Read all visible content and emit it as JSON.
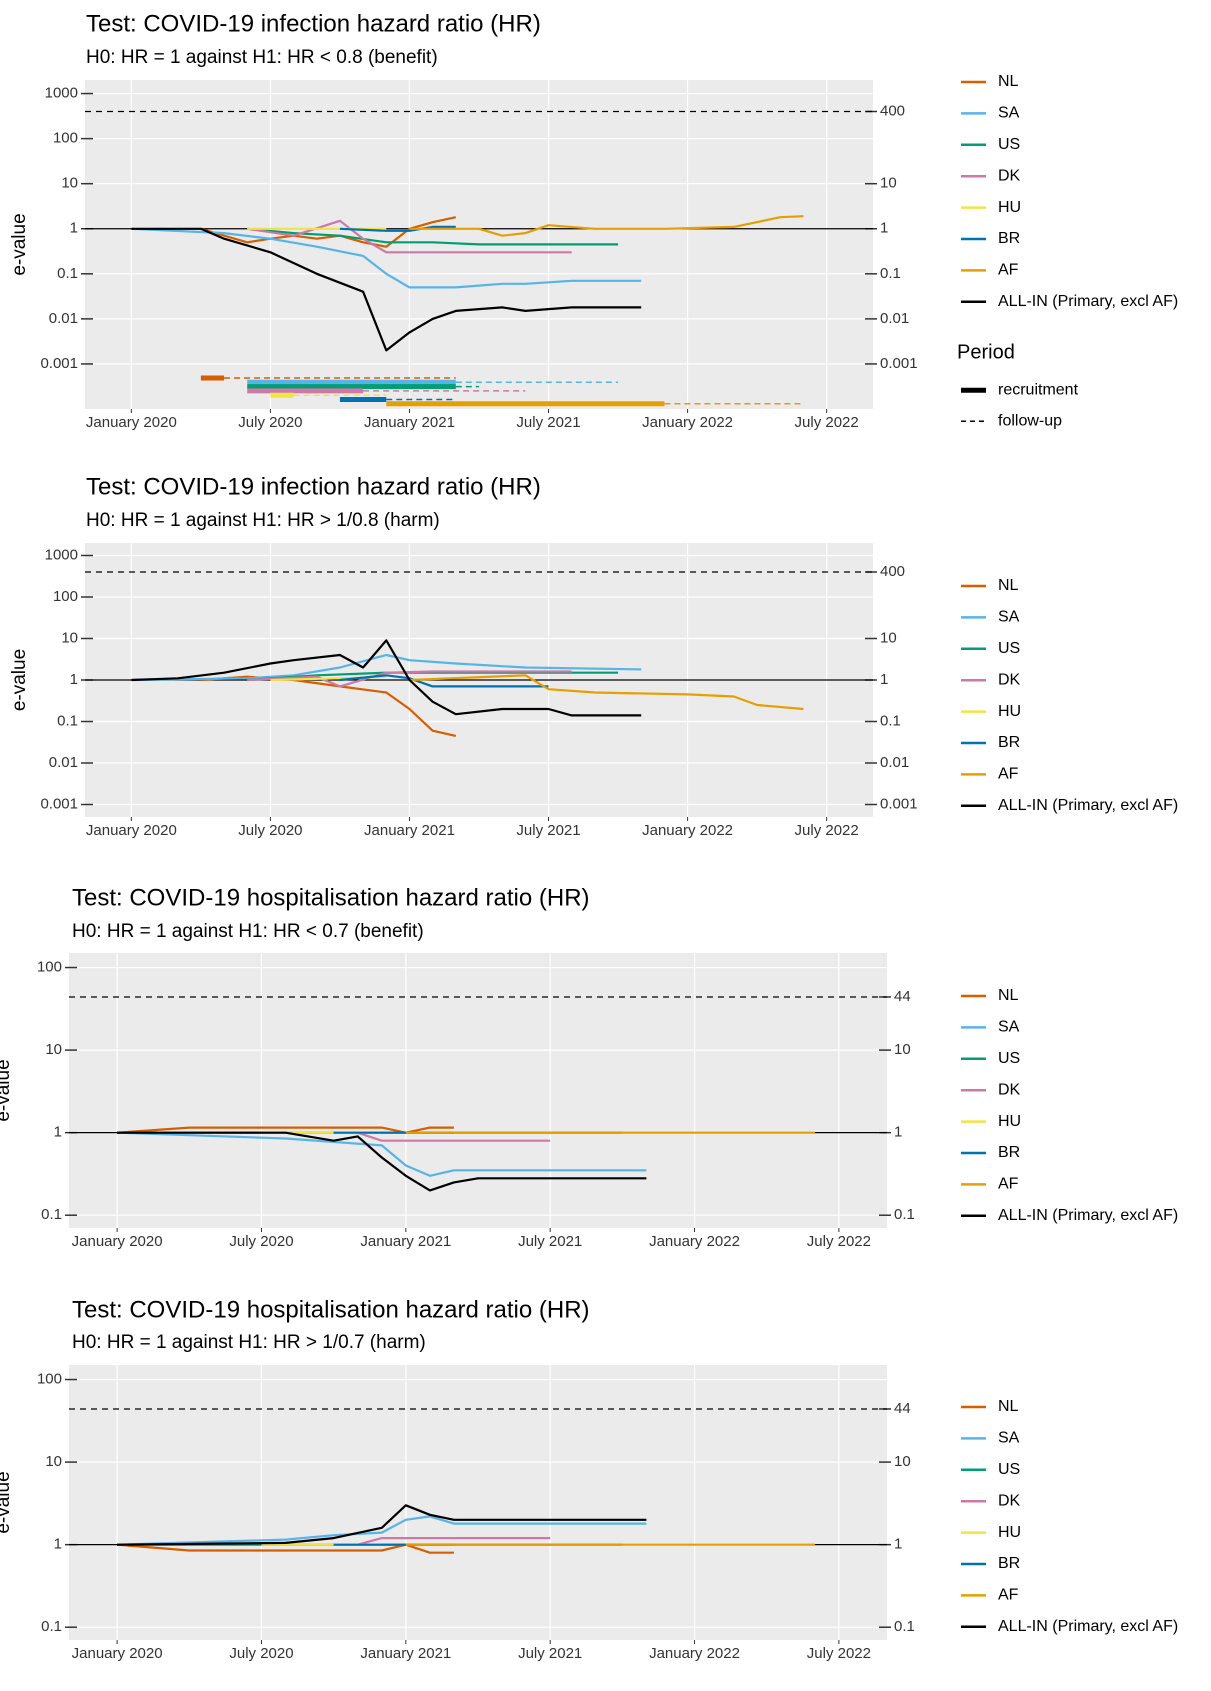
{
  "chart_data": [
    {
      "type": "line",
      "title": "Test: COVID-19 infection hazard ratio (HR)",
      "subtitle": "H0: HR = 1 against H1: HR < 0.8 (benefit)",
      "y_label": "e-value",
      "log_y": true,
      "grid": true,
      "hline": 1,
      "threshold": 400,
      "xlim": [
        "2019-11",
        "2022-09"
      ],
      "xticks": [
        {
          "value": "2020-01",
          "label": "January 2020"
        },
        {
          "value": "2020-07",
          "label": "July 2020"
        },
        {
          "value": "2021-01",
          "label": "January 2021"
        },
        {
          "value": "2021-07",
          "label": "July 2021"
        },
        {
          "value": "2022-01",
          "label": "January 2022"
        },
        {
          "value": "2022-07",
          "label": "July 2022"
        }
      ],
      "ylim": [
        0.0001,
        2000
      ],
      "yticks": [
        0.001,
        0.01,
        0.1,
        1,
        10,
        100,
        1000
      ],
      "y2lim": [
        0.0001,
        2000
      ],
      "y2ticks": [
        0.001,
        0.01,
        0.1,
        1,
        10,
        400
      ],
      "series": [
        {
          "name": "NL",
          "color": "#d55e00",
          "x": [
            "2020-04",
            "2020-05",
            "2020-06",
            "2020-07",
            "2020-08",
            "2020-09",
            "2020-10",
            "2020-11",
            "2020-12",
            "2021-01",
            "2021-02",
            "2021-03"
          ],
          "values": [
            1,
            0.7,
            0.5,
            0.6,
            0.7,
            0.6,
            0.7,
            0.5,
            0.4,
            1,
            1.4,
            1.8
          ],
          "recruitment": [
            "2020-04",
            "2020-05"
          ],
          "follow_up": [
            "2020-05",
            "2021-03"
          ]
        },
        {
          "name": "SA",
          "color": "#56b4e9",
          "x": [
            "2020-01",
            "2020-05",
            "2020-07",
            "2020-09",
            "2020-11",
            "2020-12",
            "2021-01",
            "2021-03",
            "2021-05",
            "2021-06",
            "2021-08",
            "2021-11"
          ],
          "values": [
            1,
            0.8,
            0.6,
            0.4,
            0.25,
            0.1,
            0.05,
            0.05,
            0.06,
            0.06,
            0.07,
            0.07
          ],
          "recruitment": [
            "2020-06",
            "2021-03"
          ],
          "follow_up": [
            "2021-03",
            "2021-10"
          ]
        },
        {
          "name": "US",
          "color": "#009e73",
          "x": [
            "2020-06",
            "2020-08",
            "2020-10",
            "2020-12",
            "2021-02",
            "2021-04",
            "2021-10"
          ],
          "values": [
            1,
            0.8,
            0.7,
            0.5,
            0.5,
            0.45,
            0.45
          ],
          "recruitment": [
            "2020-06",
            "2021-03"
          ],
          "follow_up": [
            "2021-03",
            "2021-04"
          ]
        },
        {
          "name": "DK",
          "color": "#cc79a7",
          "x": [
            "2020-06",
            "2020-08",
            "2020-10",
            "2020-11",
            "2020-12",
            "2021-02",
            "2021-08"
          ],
          "values": [
            1,
            0.7,
            1.5,
            0.6,
            0.3,
            0.3,
            0.3
          ],
          "recruitment": [
            "2020-06",
            "2020-11"
          ],
          "follow_up": [
            "2020-11",
            "2021-06"
          ]
        },
        {
          "name": "HU",
          "color": "#f0e442",
          "x": [
            "2020-06",
            "2020-09",
            "2020-12"
          ],
          "values": [
            1,
            1,
            1
          ],
          "recruitment": [
            "2020-07",
            "2020-08"
          ],
          "follow_up": [
            "2020-08",
            "2020-12"
          ]
        },
        {
          "name": "BR",
          "color": "#0072b2",
          "x": [
            "2020-10",
            "2020-12",
            "2021-01",
            "2021-02",
            "2021-03"
          ],
          "values": [
            1,
            0.9,
            0.9,
            1.1,
            1.1
          ],
          "recruitment": [
            "2020-10",
            "2020-12"
          ],
          "follow_up": [
            "2020-12",
            "2021-03"
          ]
        },
        {
          "name": "AF",
          "color": "#e69f00",
          "x": [
            "2021-01",
            "2021-04",
            "2021-05",
            "2021-06",
            "2021-07",
            "2021-09",
            "2021-12",
            "2022-03",
            "2022-05",
            "2022-06"
          ],
          "values": [
            1,
            1,
            0.7,
            0.8,
            1.2,
            1,
            1,
            1.1,
            1.8,
            1.9
          ],
          "recruitment": [
            "2020-12",
            "2021-12"
          ],
          "follow_up": [
            "2021-12",
            "2022-06"
          ]
        },
        {
          "name": "ALL-IN (Primary, excl AF)",
          "color": "#000000",
          "x": [
            "2020-01",
            "2020-04",
            "2020-05",
            "2020-07",
            "2020-09",
            "2020-11",
            "2020-12",
            "2021-01",
            "2021-02",
            "2021-03",
            "2021-05",
            "2021-06",
            "2021-08",
            "2021-11"
          ],
          "values": [
            1,
            1,
            0.6,
            0.3,
            0.1,
            0.04,
            0.002,
            0.005,
            0.01,
            0.015,
            0.018,
            0.015,
            0.018,
            0.018
          ]
        }
      ],
      "period_legend": {
        "title": "Period",
        "recruitment": "recruitment",
        "follow_up": "follow-up"
      }
    },
    {
      "type": "line",
      "title": "Test: COVID-19 infection hazard ratio (HR)",
      "subtitle": "H0: HR = 1 against H1: HR > 1/0.8 (harm)",
      "y_label": "e-value",
      "log_y": true,
      "grid": true,
      "hline": 1,
      "threshold": 400,
      "xlim": [
        "2019-11",
        "2022-09"
      ],
      "xticks": [
        {
          "value": "2020-01",
          "label": "January 2020"
        },
        {
          "value": "2020-07",
          "label": "July 2020"
        },
        {
          "value": "2021-01",
          "label": "January 2021"
        },
        {
          "value": "2021-07",
          "label": "July 2021"
        },
        {
          "value": "2022-01",
          "label": "January 2022"
        },
        {
          "value": "2022-07",
          "label": "July 2022"
        }
      ],
      "ylim": [
        0.0005,
        2000
      ],
      "yticks": [
        0.001,
        0.01,
        0.1,
        1,
        10,
        100,
        1000
      ],
      "y2lim": [
        0.0005,
        2000
      ],
      "y2ticks": [
        0.001,
        0.01,
        0.1,
        1,
        10,
        400
      ],
      "series": [
        {
          "name": "NL",
          "color": "#d55e00",
          "x": [
            "2020-04",
            "2020-06",
            "2020-08",
            "2020-10",
            "2020-12",
            "2021-01",
            "2021-02",
            "2021-03"
          ],
          "values": [
            1,
            1.2,
            1,
            0.7,
            0.5,
            0.2,
            0.06,
            0.045
          ]
        },
        {
          "name": "SA",
          "color": "#56b4e9",
          "x": [
            "2020-01",
            "2020-06",
            "2020-08",
            "2020-10",
            "2020-12",
            "2021-01",
            "2021-03",
            "2021-06",
            "2021-11"
          ],
          "values": [
            1,
            1.1,
            1.3,
            2,
            4,
            3,
            2.5,
            2,
            1.8
          ]
        },
        {
          "name": "US",
          "color": "#009e73",
          "x": [
            "2020-06",
            "2020-09",
            "2020-12",
            "2021-03",
            "2021-10"
          ],
          "values": [
            1,
            1.3,
            1.5,
            1.5,
            1.5
          ]
        },
        {
          "name": "DK",
          "color": "#cc79a7",
          "x": [
            "2020-06",
            "2020-09",
            "2020-10",
            "2020-12",
            "2021-02",
            "2021-08"
          ],
          "values": [
            1,
            1.2,
            0.7,
            1.5,
            1.6,
            1.6
          ]
        },
        {
          "name": "HU",
          "color": "#f0e442",
          "x": [
            "2020-07",
            "2020-10",
            "2020-12"
          ],
          "values": [
            1,
            1.1,
            1.2
          ]
        },
        {
          "name": "BR",
          "color": "#0072b2",
          "x": [
            "2020-10",
            "2020-12",
            "2021-01",
            "2021-02",
            "2021-07"
          ],
          "values": [
            1,
            1.3,
            1.1,
            0.7,
            0.7
          ]
        },
        {
          "name": "AF",
          "color": "#e69f00",
          "x": [
            "2021-01",
            "2021-06",
            "2021-07",
            "2021-09",
            "2022-01",
            "2022-03",
            "2022-04",
            "2022-06"
          ],
          "values": [
            1,
            1.3,
            0.6,
            0.5,
            0.45,
            0.4,
            0.25,
            0.2
          ]
        },
        {
          "name": "ALL-IN (Primary, excl AF)",
          "color": "#000000",
          "x": [
            "2020-01",
            "2020-03",
            "2020-05",
            "2020-07",
            "2020-08",
            "2020-10",
            "2020-11",
            "2020-12",
            "2021-01",
            "2021-02",
            "2021-03",
            "2021-05",
            "2021-07",
            "2021-08",
            "2021-11"
          ],
          "values": [
            1,
            1.1,
            1.5,
            2.5,
            3,
            4,
            2,
            9,
            1,
            0.3,
            0.15,
            0.2,
            0.2,
            0.14,
            0.14
          ]
        }
      ]
    },
    {
      "type": "line",
      "title": "Test: COVID-19 hospitalisation hazard ratio (HR)",
      "subtitle": "H0: HR = 1 against H1: HR < 0.7 (benefit)",
      "y_label": "e-value",
      "log_y": true,
      "grid": true,
      "hline": 1,
      "threshold": 44,
      "xlim": [
        "2019-11",
        "2022-09"
      ],
      "xticks": [
        {
          "value": "2020-01",
          "label": "January 2020"
        },
        {
          "value": "2020-07",
          "label": "July 2020"
        },
        {
          "value": "2021-01",
          "label": "January 2021"
        },
        {
          "value": "2021-07",
          "label": "July 2021"
        },
        {
          "value": "2022-01",
          "label": "January 2022"
        },
        {
          "value": "2022-07",
          "label": "July 2022"
        }
      ],
      "ylim": [
        0.07,
        150
      ],
      "yticks": [
        0.1,
        1,
        10,
        100
      ],
      "y2lim": [
        0.07,
        150
      ],
      "y2ticks": [
        0.1,
        1,
        10,
        44
      ],
      "series": [
        {
          "name": "NL",
          "color": "#d55e00",
          "x": [
            "2020-01",
            "2020-04",
            "2020-12",
            "2021-01",
            "2021-02",
            "2021-03"
          ],
          "values": [
            1,
            1.15,
            1.15,
            1,
            1.15,
            1.15
          ]
        },
        {
          "name": "SA",
          "color": "#56b4e9",
          "x": [
            "2020-01",
            "2020-08",
            "2020-12",
            "2021-01",
            "2021-02",
            "2021-03",
            "2021-11"
          ],
          "values": [
            1,
            0.85,
            0.7,
            0.4,
            0.3,
            0.35,
            0.35
          ]
        },
        {
          "name": "US",
          "color": "#009e73",
          "x": [
            "2020-01",
            "2021-10"
          ],
          "values": [
            1,
            1
          ]
        },
        {
          "name": "DK",
          "color": "#cc79a7",
          "x": [
            "2020-11",
            "2020-12",
            "2021-07"
          ],
          "values": [
            1,
            0.8,
            0.8
          ]
        },
        {
          "name": "HU",
          "color": "#f0e442",
          "x": [
            "2020-07",
            "2020-12"
          ],
          "values": [
            1,
            1
          ]
        },
        {
          "name": "BR",
          "color": "#0072b2",
          "x": [
            "2020-10",
            "2021-03"
          ],
          "values": [
            1,
            1
          ]
        },
        {
          "name": "AF",
          "color": "#e69f00",
          "x": [
            "2021-01",
            "2022-06"
          ],
          "values": [
            1,
            1
          ]
        },
        {
          "name": "ALL-IN (Primary, excl AF)",
          "color": "#000000",
          "x": [
            "2020-01",
            "2020-08",
            "2020-10",
            "2020-11",
            "2020-12",
            "2021-01",
            "2021-02",
            "2021-03",
            "2021-04",
            "2021-11"
          ],
          "values": [
            1,
            1,
            0.8,
            0.9,
            0.5,
            0.3,
            0.2,
            0.25,
            0.28,
            0.28
          ]
        }
      ]
    },
    {
      "type": "line",
      "title": "Test: COVID-19 hospitalisation hazard ratio (HR)",
      "subtitle": "H0: HR = 1 against H1: HR > 1/0.7 (harm)",
      "y_label": "e-value",
      "log_y": true,
      "grid": true,
      "hline": 1,
      "threshold": 44,
      "xlim": [
        "2019-11",
        "2022-09"
      ],
      "xticks": [
        {
          "value": "2020-01",
          "label": "January 2020"
        },
        {
          "value": "2020-07",
          "label": "July 2020"
        },
        {
          "value": "2021-01",
          "label": "January 2021"
        },
        {
          "value": "2021-07",
          "label": "July 2021"
        },
        {
          "value": "2022-01",
          "label": "January 2022"
        },
        {
          "value": "2022-07",
          "label": "July 2022"
        }
      ],
      "ylim": [
        0.07,
        150
      ],
      "yticks": [
        0.1,
        1,
        10,
        100
      ],
      "y2lim": [
        0.07,
        150
      ],
      "y2ticks": [
        0.1,
        1,
        10,
        44
      ],
      "series": [
        {
          "name": "NL",
          "color": "#d55e00",
          "x": [
            "2020-01",
            "2020-04",
            "2020-12",
            "2021-01",
            "2021-02",
            "2021-03"
          ],
          "values": [
            1,
            0.85,
            0.85,
            1,
            0.8,
            0.8
          ]
        },
        {
          "name": "SA",
          "color": "#56b4e9",
          "x": [
            "2020-01",
            "2020-08",
            "2020-10",
            "2020-12",
            "2021-01",
            "2021-02",
            "2021-03",
            "2021-11"
          ],
          "values": [
            1,
            1.15,
            1.3,
            1.4,
            2,
            2.2,
            1.8,
            1.8
          ]
        },
        {
          "name": "US",
          "color": "#009e73",
          "x": [
            "2020-01",
            "2021-10"
          ],
          "values": [
            1,
            1
          ]
        },
        {
          "name": "DK",
          "color": "#cc79a7",
          "x": [
            "2020-11",
            "2020-12",
            "2021-07"
          ],
          "values": [
            1,
            1.2,
            1.2
          ]
        },
        {
          "name": "HU",
          "color": "#f0e442",
          "x": [
            "2020-07",
            "2020-12"
          ],
          "values": [
            1,
            1
          ]
        },
        {
          "name": "BR",
          "color": "#0072b2",
          "x": [
            "2020-10",
            "2021-03"
          ],
          "values": [
            1,
            1
          ]
        },
        {
          "name": "AF",
          "color": "#e69f00",
          "x": [
            "2021-01",
            "2022-06"
          ],
          "values": [
            1,
            1
          ]
        },
        {
          "name": "ALL-IN (Primary, excl AF)",
          "color": "#000000",
          "x": [
            "2020-01",
            "2020-08",
            "2020-10",
            "2020-12",
            "2021-01",
            "2021-02",
            "2021-03",
            "2021-04",
            "2021-11"
          ],
          "values": [
            1,
            1.05,
            1.2,
            1.6,
            3,
            2.3,
            2,
            2,
            2
          ]
        }
      ]
    }
  ]
}
